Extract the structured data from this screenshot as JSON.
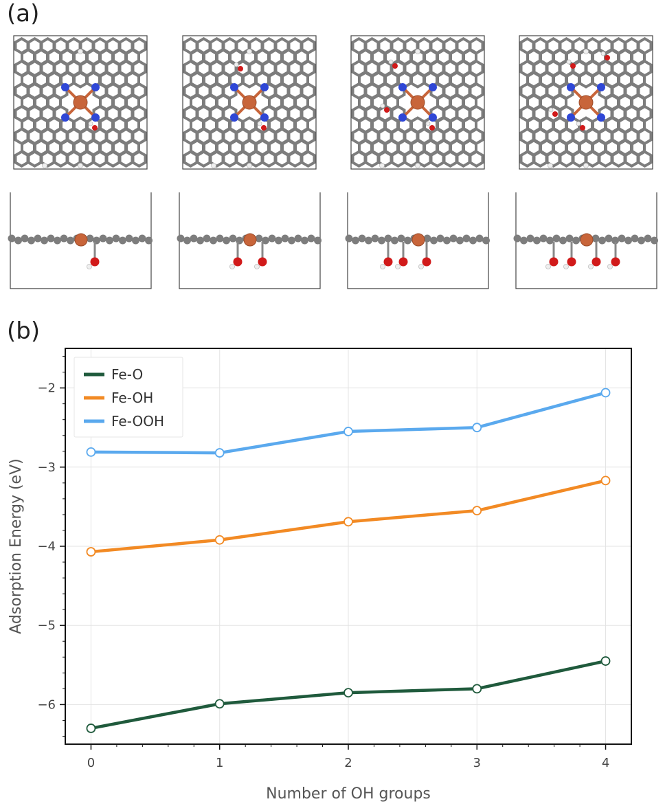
{
  "panels": {
    "a": "(a)",
    "b": "(b)"
  },
  "colors": {
    "carbon": "#7d7d7d",
    "nitrogen": "#2f47d6",
    "iron": "#c8653a",
    "oxygen": "#d11a1a",
    "hydrogen": "#efefef"
  },
  "chart_data": {
    "type": "line",
    "x": [
      0,
      1,
      2,
      3,
      4
    ],
    "series": [
      {
        "name": "Fe-O",
        "values": [
          -6.3,
          -5.99,
          -5.85,
          -5.8,
          -5.45
        ],
        "color": "#1f5a3c"
      },
      {
        "name": "Fe-OH",
        "values": [
          -4.07,
          -3.92,
          -3.69,
          -3.55,
          -3.17
        ],
        "color": "#f28a24"
      },
      {
        "name": "Fe-OOH",
        "values": [
          -2.81,
          -2.82,
          -2.55,
          -2.5,
          -2.06
        ],
        "color": "#5aa9ee"
      }
    ],
    "title": "",
    "xlabel": "Number of OH groups",
    "ylabel": "Adsorption Energy (eV)",
    "xlim": [
      -0.2,
      4.2
    ],
    "ylim": [
      -6.5,
      -1.5
    ],
    "xticks": [
      "0",
      "1",
      "2",
      "3",
      "4"
    ],
    "yticks": [
      "−2",
      "−3",
      "−4",
      "−5",
      "−6"
    ],
    "ytick_values": [
      -2,
      -3,
      -4,
      -5,
      -6
    ],
    "grid": true,
    "legend": "top-left"
  }
}
